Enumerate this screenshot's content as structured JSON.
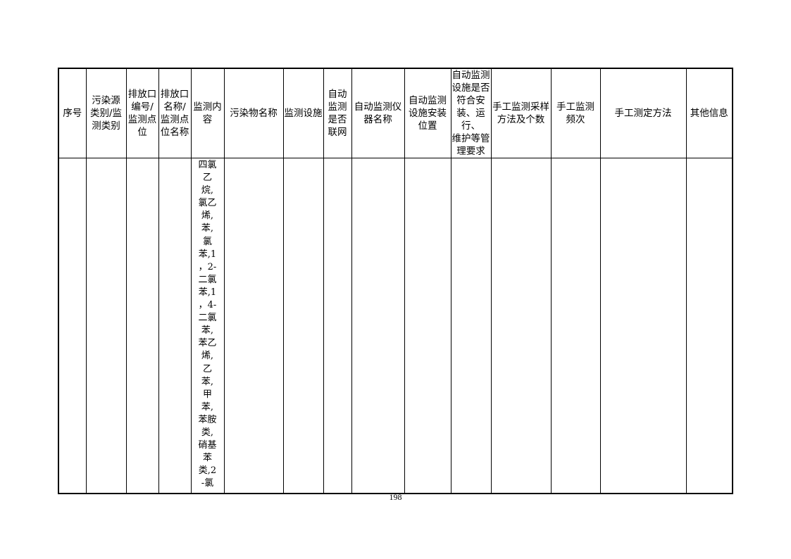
{
  "table": {
    "headers": [
      "序号",
      "污染源\n类别/监\n测类别",
      "排放口\n编号/\n监测点\n位",
      "排放口\n名称/\n监测点\n位名称",
      "监测内\n容",
      "污染物名称",
      "监测设施",
      "自动\n监测\n是否\n联网",
      "自动监测仪\n器名称",
      "自动监测\n设施安装\n位置",
      "自动监测\n设施是否\n符合安\n装、运行、\n维护等管\n理要求",
      "手工监测采样\n方法及个数",
      "手工监测\n频次",
      "手工测定方法",
      "其他信息"
    ],
    "row": {
      "monitoring_content": "四氯\n乙\n烷,\n氯乙\n烯,\n苯,\n氯\n苯,1\n，2-\n二氯\n苯,1\n，4-\n二氯\n苯,\n苯乙\n烯,\n乙\n苯,\n甲\n苯,\n苯胺\n类,\n硝基\n苯\n类,2\n-氯"
    }
  },
  "page_number": "198"
}
